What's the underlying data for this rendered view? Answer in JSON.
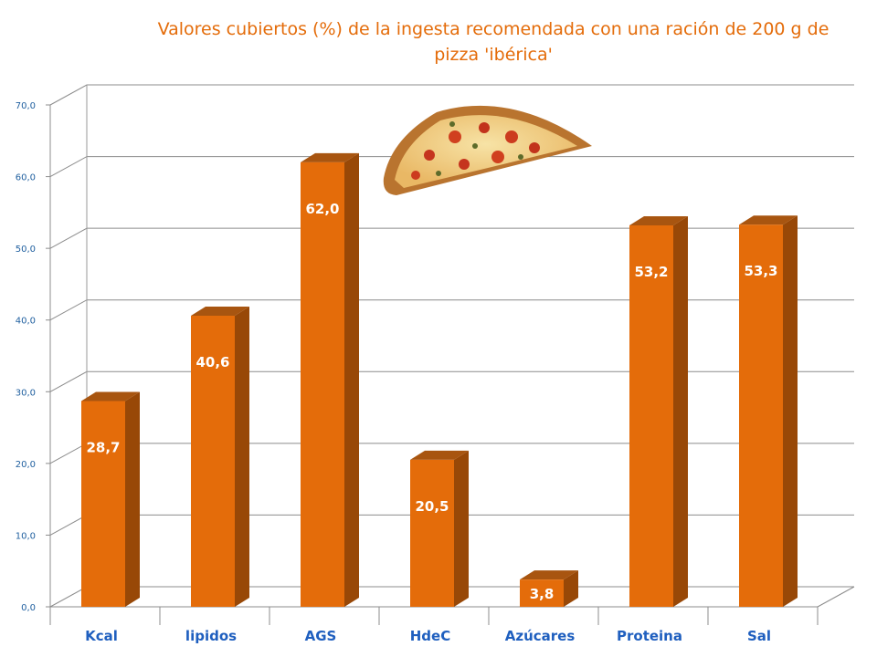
{
  "chart_data": {
    "type": "bar",
    "title": "Valores cubiertos (%) de la ingesta recomendada con una ración de 200 g de pizza 'ibérica'",
    "categories": [
      "Kcal",
      "lipidos",
      "AGS",
      "HdeC",
      "Azúcares",
      "Proteina",
      "Sal"
    ],
    "values": [
      28.7,
      40.6,
      62.0,
      20.5,
      3.8,
      53.2,
      53.3
    ],
    "value_labels": [
      "28,7",
      "40,6",
      "62,0",
      "20,5",
      "3,8",
      "53,2",
      "53,3"
    ],
    "yticks": [
      "0,0",
      "10,0",
      "20,0",
      "30,0",
      "40,0",
      "50,0",
      "60,0",
      "70,0"
    ],
    "ylim": [
      0,
      70
    ],
    "grid": true,
    "style": "3d-column",
    "colors": {
      "bar_front": "#e46c0a",
      "bar_side": "#984807",
      "bar_top": "#a85510",
      "title": "#e46c0a",
      "axis_labels": "#1f5fbf"
    },
    "decoration_icon": "pizza-slice-icon"
  }
}
